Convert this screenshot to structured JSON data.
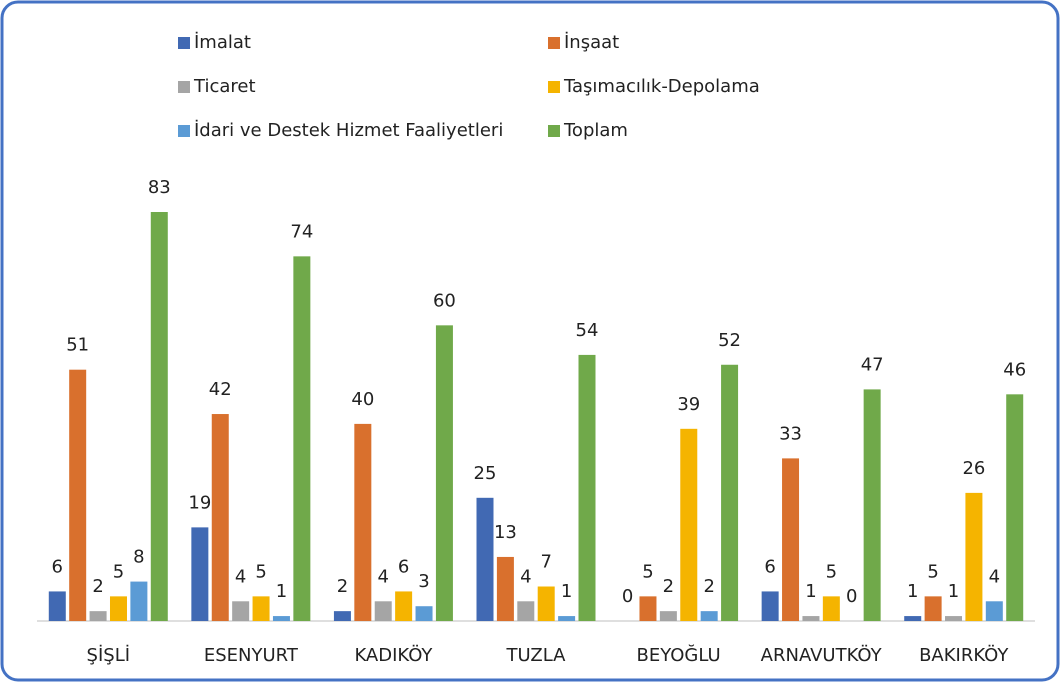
{
  "chart_data": {
    "type": "bar",
    "categories": [
      "ŞİŞLİ",
      "ESENYURT",
      "KADIKÖY",
      "TUZLA",
      "BEYOĞLU",
      "ARNAVUTKÖY",
      "BAKIRKÖY"
    ],
    "series": [
      {
        "name": "İmalat",
        "color": "#4169b3",
        "values": [
          6,
          19,
          2,
          25,
          0,
          6,
          1
        ]
      },
      {
        "name": "İnşaat",
        "color": "#d9702d",
        "values": [
          51,
          42,
          40,
          13,
          5,
          33,
          5
        ]
      },
      {
        "name": "Ticaret",
        "color": "#a5a5a5",
        "values": [
          2,
          4,
          4,
          4,
          2,
          1,
          1
        ]
      },
      {
        "name": "Taşımacılık-Depolama",
        "color": "#f5b400",
        "values": [
          5,
          5,
          6,
          7,
          39,
          5,
          26
        ]
      },
      {
        "name": "İdari ve Destek Hizmet Faaliyetleri",
        "color": "#5b9bd5",
        "values": [
          8,
          1,
          3,
          1,
          2,
          0,
          4
        ]
      },
      {
        "name": "Toplam",
        "color": "#70a94a",
        "values": [
          83,
          74,
          60,
          54,
          52,
          47,
          46
        ]
      }
    ],
    "legend": "top"
  }
}
